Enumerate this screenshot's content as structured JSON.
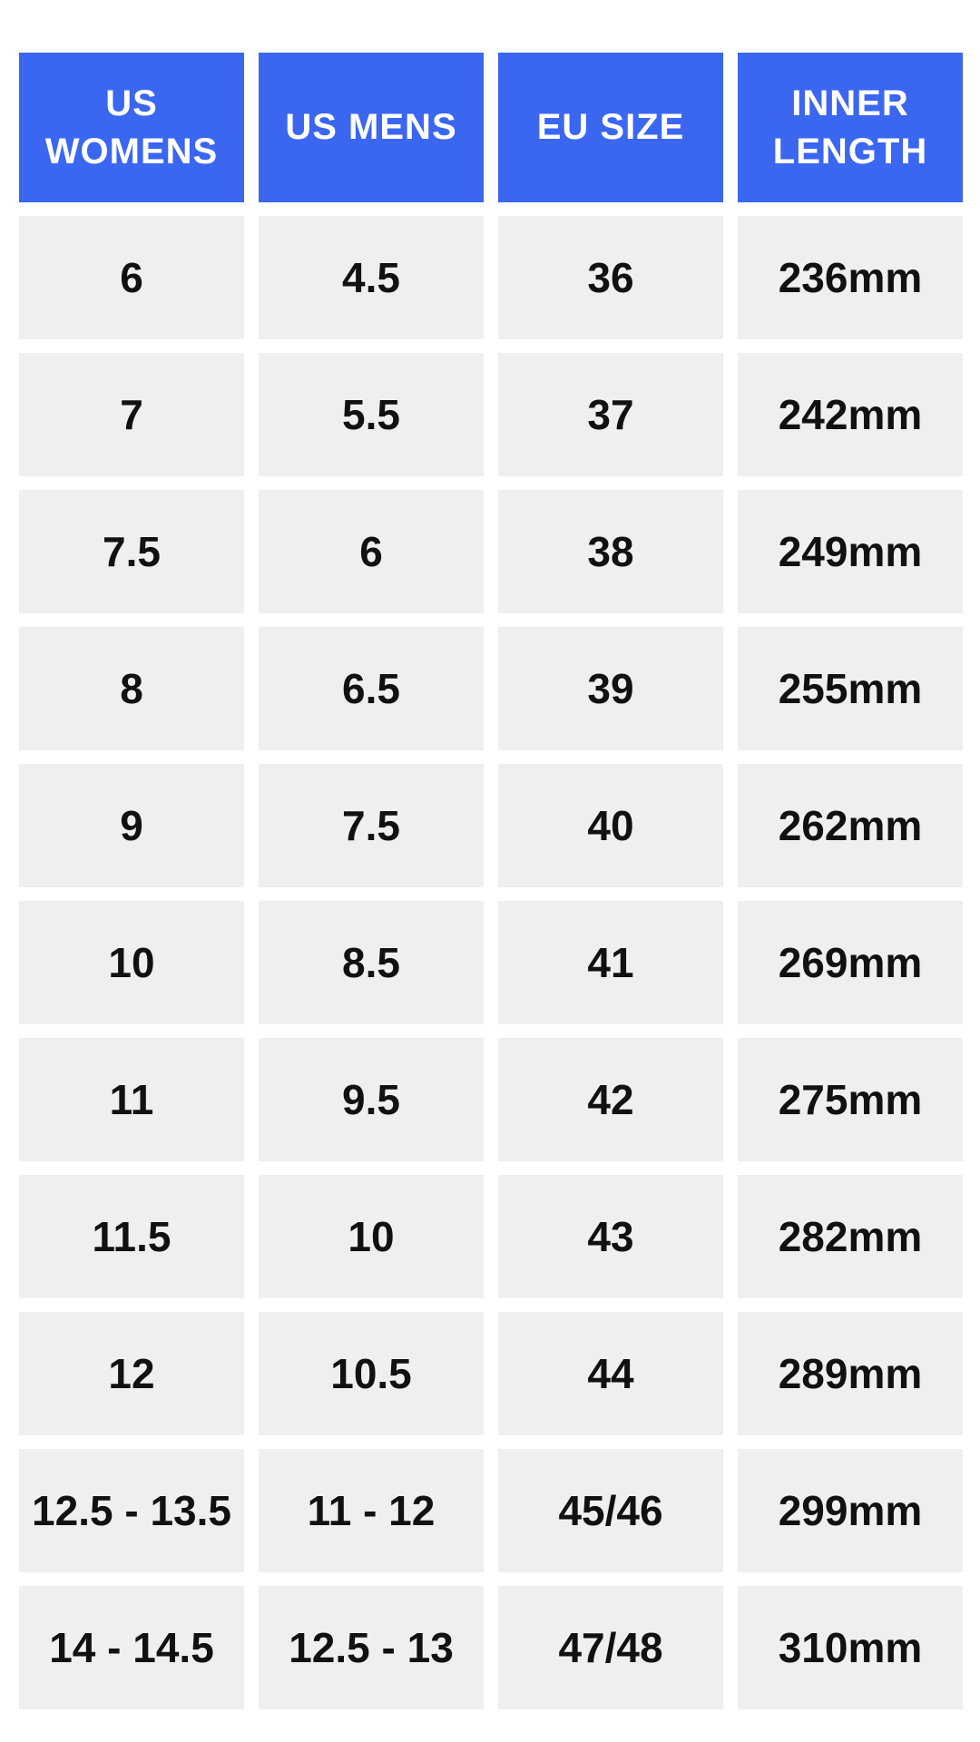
{
  "chart_data": {
    "type": "table",
    "columns": [
      "US WOMENS",
      "US MENS",
      "EU SIZE",
      "INNER LENGTH"
    ],
    "rows": [
      [
        "6",
        "4.5",
        "36",
        "236mm"
      ],
      [
        "7",
        "5.5",
        "37",
        "242mm"
      ],
      [
        "7.5",
        "6",
        "38",
        "249mm"
      ],
      [
        "8",
        "6.5",
        "39",
        "255mm"
      ],
      [
        "9",
        "7.5",
        "40",
        "262mm"
      ],
      [
        "10",
        "8.5",
        "41",
        "269mm"
      ],
      [
        "11",
        "9.5",
        "42",
        "275mm"
      ],
      [
        "11.5",
        "10",
        "43",
        "282mm"
      ],
      [
        "12",
        "10.5",
        "44",
        "289mm"
      ],
      [
        "12.5 - 13.5",
        "11 - 12",
        "45/46",
        "299mm"
      ],
      [
        "14 - 14.5",
        "12.5 - 13",
        "47/48",
        "310mm"
      ]
    ],
    "layout": {
      "grid": "off",
      "header_style": "blue tiles, white bold uppercase text",
      "cell_style": "light gray tiles, black bold text, white gutters"
    }
  },
  "colors": {
    "header_bg": "#3A66F0",
    "header_text": "#FFFFFF",
    "cell_bg": "#EFEFEF",
    "cell_text": "#111111",
    "page_bg": "#FFFFFF"
  }
}
